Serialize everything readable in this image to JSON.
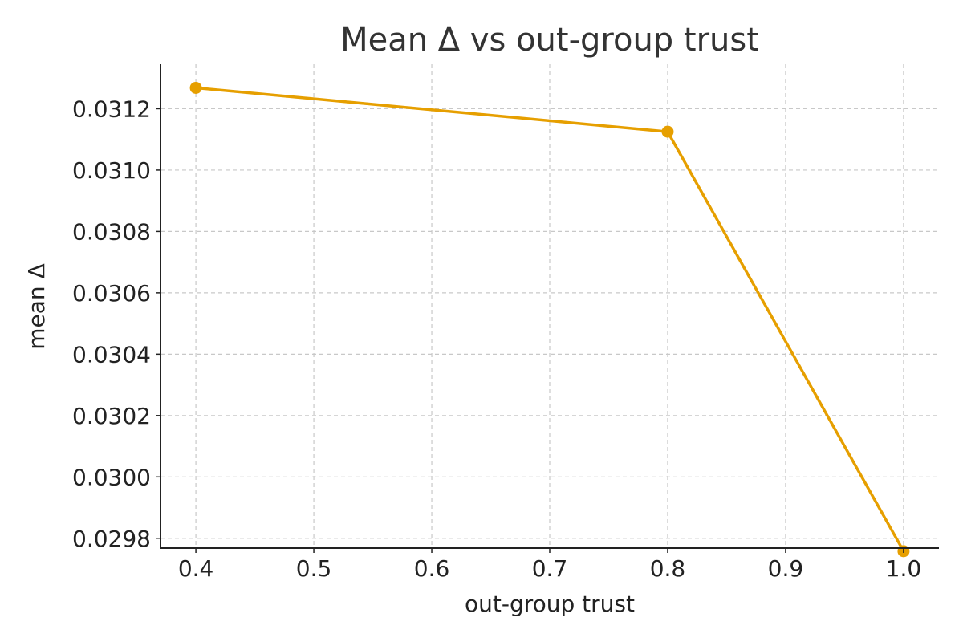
{
  "chart_data": {
    "type": "line",
    "title": "Mean Δ vs out-group trust",
    "xlabel": "out-group trust",
    "ylabel": "mean Δ",
    "xlim": [
      0.37,
      1.03
    ],
    "ylim": [
      0.029768,
      0.031345
    ],
    "xticks": [
      0.4,
      0.5,
      0.6,
      0.7,
      0.8,
      0.9,
      1.0
    ],
    "xtick_labels": [
      "0.4",
      "0.5",
      "0.6",
      "0.7",
      "0.8",
      "0.9",
      "1.0"
    ],
    "yticks": [
      0.0298,
      0.03,
      0.0302,
      0.0304,
      0.0306,
      0.0308,
      0.031,
      0.0312
    ],
    "ytick_labels": [
      "0.0298",
      "0.0300",
      "0.0302",
      "0.0304",
      "0.0306",
      "0.0308",
      "0.0310",
      "0.0312"
    ],
    "grid": true,
    "color": "#E69F00",
    "series": [
      {
        "x": [
          0.4,
          0.8,
          1.0
        ],
        "y": [
          0.031268,
          0.031125,
          0.029758
        ]
      }
    ]
  }
}
